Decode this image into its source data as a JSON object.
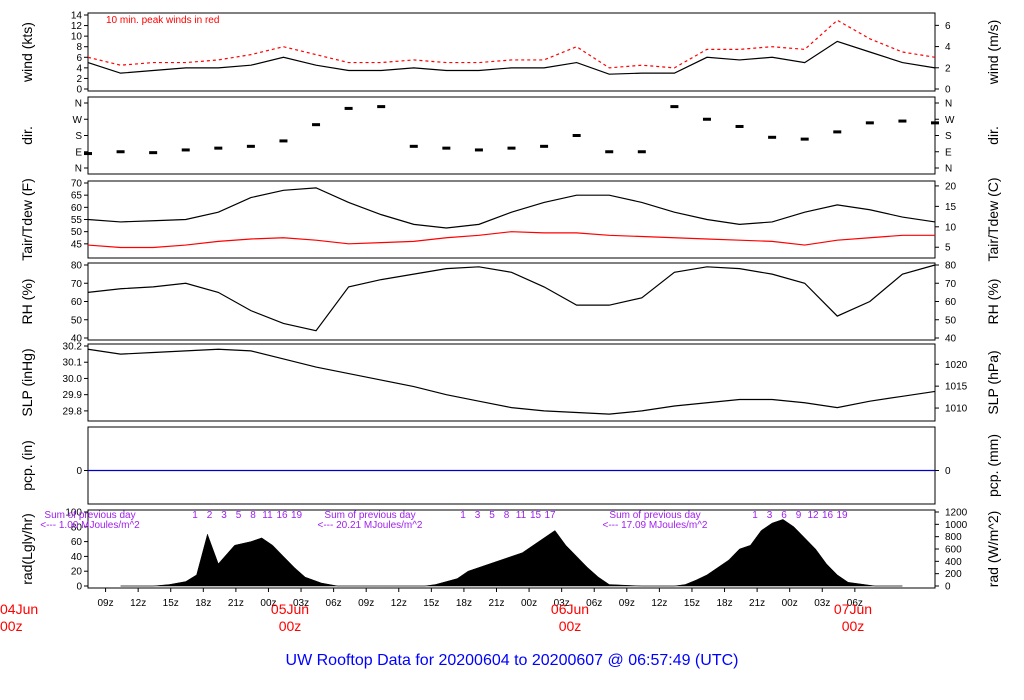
{
  "title": "UW Rooftop Data for 20200604  to  20200607 @ 06:57:49  (UTC)",
  "colors": {
    "trace": "#000000",
    "peak": "#ff0000",
    "dew": "#ff0000",
    "pcp": "#0000cd",
    "solar_note": "#a020f0",
    "date": "#ff0000",
    "title": "#0000ff"
  },
  "x_axis": {
    "hour_ticks": [
      "09z",
      "12z",
      "15z",
      "18z",
      "21z",
      "00z",
      "03z",
      "06z",
      "09z",
      "12z",
      "15z",
      "18z",
      "21z",
      "00z",
      "03z",
      "06z",
      "09z",
      "12z",
      "15z",
      "18z",
      "21z",
      "00z",
      "03z",
      "06z"
    ],
    "date_labels": [
      {
        "day": "04Jun",
        "hour": "00z"
      },
      {
        "day": "05Jun",
        "hour": "00z"
      },
      {
        "day": "06Jun",
        "hour": "00z"
      },
      {
        "day": "07Jun",
        "hour": "00z"
      }
    ]
  },
  "chart_data": [
    {
      "type": "line",
      "panel": "wind",
      "ylabel_left": "wind (kts)",
      "ylabel_right": "wind (m/s)",
      "ylim": [
        0,
        14
      ],
      "left_ticks": [
        "0",
        "2",
        "4",
        "6",
        "8",
        "10",
        "12",
        "14"
      ],
      "right_ticks": [
        "0",
        "2",
        "4",
        "6"
      ],
      "annotation": "10 min. peak winds in red",
      "series": [
        {
          "x_hours": [
            0,
            3,
            6,
            9,
            12,
            15,
            18,
            21,
            24,
            27,
            30,
            33,
            36,
            39,
            42,
            45,
            48,
            51,
            54,
            57,
            60,
            63,
            66,
            69,
            72,
            75,
            78
          ],
          "values": [
            5,
            3,
            3.5,
            4,
            4,
            4.5,
            6,
            4.5,
            3.5,
            3.5,
            4,
            3.5,
            3.5,
            4,
            4,
            5,
            2.8,
            3,
            3,
            6,
            5.5,
            6,
            5,
            9,
            7,
            5,
            4
          ]
        },
        {
          "x_hours": [
            0,
            3,
            6,
            9,
            12,
            15,
            18,
            21,
            24,
            27,
            30,
            33,
            36,
            39,
            42,
            45,
            48,
            51,
            54,
            57,
            60,
            63,
            66,
            69,
            72,
            75,
            78
          ],
          "values": [
            6,
            4.5,
            5,
            5,
            5.5,
            6.5,
            8,
            6.5,
            5,
            5,
            5.5,
            5,
            5,
            5.5,
            5.5,
            8,
            4,
            4.5,
            4,
            7.5,
            7.5,
            8,
            7.5,
            13,
            9.5,
            7,
            6
          ]
        }
      ]
    },
    {
      "type": "scatter",
      "panel": "dir",
      "ylabel_left": "dir.",
      "ylabel_right": "dir.",
      "left_ticks": [
        "N",
        "E",
        "S",
        "W",
        "N"
      ],
      "right_ticks": [
        "N",
        "E",
        "S",
        "W",
        "N"
      ],
      "x_hours": [
        0,
        3,
        6,
        9,
        12,
        15,
        18,
        21,
        24,
        27,
        30,
        33,
        36,
        39,
        42,
        45,
        48,
        51,
        54,
        57,
        60,
        63,
        66,
        69,
        72,
        75,
        78
      ],
      "values": [
        80,
        90,
        85,
        100,
        110,
        120,
        150,
        240,
        330,
        340,
        120,
        110,
        100,
        110,
        120,
        180,
        90,
        90,
        340,
        270,
        230,
        170,
        160,
        200,
        250,
        260,
        250
      ]
    },
    {
      "type": "line",
      "panel": "temp",
      "ylabel_left": "Tair/Tdew (F)",
      "ylabel_right": "Tair/Tdew (C)",
      "ylim": [
        40,
        70
      ],
      "left_ticks": [
        "45",
        "50",
        "55",
        "60",
        "65",
        "70"
      ],
      "right_ticks": [
        "5",
        "10",
        "15",
        "20"
      ],
      "series": [
        {
          "x_hours": [
            0,
            3,
            6,
            9,
            12,
            15,
            18,
            21,
            24,
            27,
            30,
            33,
            36,
            39,
            42,
            45,
            48,
            51,
            54,
            57,
            60,
            63,
            66,
            69,
            72,
            75,
            78
          ],
          "values": [
            55,
            54,
            54.5,
            55,
            58,
            64,
            67,
            68,
            62,
            57,
            53,
            51.5,
            53,
            58,
            62,
            65,
            65,
            62,
            58,
            55,
            53,
            54,
            58,
            61,
            59,
            56,
            54
          ]
        },
        {
          "x_hours": [
            0,
            3,
            6,
            9,
            12,
            15,
            18,
            21,
            24,
            27,
            30,
            33,
            36,
            39,
            42,
            45,
            48,
            51,
            54,
            57,
            60,
            63,
            66,
            69,
            72,
            75,
            78
          ],
          "values": [
            44.5,
            43.5,
            43.5,
            44.5,
            46,
            47,
            47.5,
            46.5,
            45,
            45.5,
            46,
            47.5,
            48.5,
            50,
            49.5,
            49.5,
            48.5,
            48,
            47.5,
            47,
            46.5,
            46,
            44.5,
            46.5,
            47.5,
            48.5,
            48.5
          ]
        }
      ]
    },
    {
      "type": "line",
      "panel": "rh",
      "ylabel_left": "RH (%)",
      "ylabel_right": "RH (%)",
      "ylim": [
        40,
        80
      ],
      "left_ticks": [
        "40",
        "50",
        "60",
        "70",
        "80"
      ],
      "right_ticks": [
        "40",
        "50",
        "60",
        "70",
        "80"
      ],
      "x_hours": [
        0,
        3,
        6,
        9,
        12,
        15,
        18,
        21,
        24,
        27,
        30,
        33,
        36,
        39,
        42,
        45,
        48,
        51,
        54,
        57,
        60,
        63,
        66,
        69,
        72,
        75,
        78
      ],
      "values": [
        65,
        67,
        68,
        70,
        65,
        55,
        48,
        44,
        68,
        72,
        75,
        78,
        79,
        76,
        68,
        58,
        58,
        62,
        76,
        79,
        78,
        75,
        70,
        52,
        60,
        75,
        80
      ]
    },
    {
      "type": "line",
      "panel": "slp",
      "ylabel_left": "SLP (inHg)",
      "ylabel_right": "SLP (hPa)",
      "ylim": [
        29.75,
        30.2
      ],
      "left_ticks": [
        "29.8",
        "29.9",
        "30.0",
        "30.1",
        "30.2"
      ],
      "right_ticks": [
        "1010",
        "1015",
        "1020"
      ],
      "x_hours": [
        0,
        3,
        6,
        9,
        12,
        15,
        18,
        21,
        24,
        27,
        30,
        33,
        36,
        39,
        42,
        45,
        48,
        51,
        54,
        57,
        60,
        63,
        66,
        69,
        72,
        75,
        78
      ],
      "values": [
        30.18,
        30.15,
        30.16,
        30.17,
        30.18,
        30.17,
        30.12,
        30.07,
        30.03,
        29.99,
        29.95,
        29.9,
        29.86,
        29.82,
        29.8,
        29.79,
        29.78,
        29.8,
        29.83,
        29.85,
        29.87,
        29.87,
        29.85,
        29.82,
        29.86,
        29.89,
        29.92
      ]
    },
    {
      "type": "line",
      "panel": "pcp",
      "ylabel_left": "pcp. (in)",
      "ylabel_right": "pcp. (mm)",
      "left_ticks": [
        "0"
      ],
      "right_ticks": [
        "0"
      ],
      "x_hours": [
        0,
        78
      ],
      "values": [
        0,
        0
      ]
    },
    {
      "type": "area",
      "panel": "rad",
      "ylabel_left": "rad(Lgly/hr)",
      "ylabel_right": "rad (W/m^2)",
      "ylim": [
        0,
        100
      ],
      "left_ticks": [
        "0",
        "20",
        "40",
        "60",
        "80",
        "100"
      ],
      "right_ticks": [
        "0",
        "200",
        "400",
        "600",
        "800",
        "1000",
        "1200"
      ],
      "notes": [
        {
          "text": "Sum of previous day",
          "sub": "<--- 1.00 MJoules/m^2"
        },
        {
          "text": "Sum of previous day",
          "sub": "<--- 20.21 MJoules/m^2"
        },
        {
          "text": "Sum of previous day",
          "sub": "<--- 17.09 MJoules/m^2"
        }
      ],
      "marker_labels": [
        [
          "1",
          "2",
          "3",
          "5",
          "8",
          "11",
          "16",
          "19"
        ],
        [
          "1",
          "3",
          "5",
          "8",
          "11",
          "15",
          "17"
        ],
        [
          "1",
          "3",
          "6",
          "9",
          "12",
          "16",
          "19"
        ]
      ],
      "x_hours": [
        3,
        6,
        7.5,
        9,
        10,
        11,
        12,
        13.5,
        15,
        16,
        17,
        18,
        19,
        20,
        21.5,
        23,
        24,
        27,
        31,
        32,
        34,
        35,
        36,
        37,
        38,
        39,
        40,
        41,
        42,
        43,
        44,
        45,
        46,
        47,
        48,
        51,
        54,
        55,
        56,
        57,
        58,
        59,
        60,
        61,
        62,
        63,
        64,
        65,
        66,
        67,
        68,
        69,
        70,
        72.5,
        75
      ],
      "values": [
        0,
        0,
        2,
        6,
        15,
        70,
        30,
        55,
        60,
        65,
        55,
        40,
        25,
        12,
        4,
        0,
        0,
        0,
        0,
        2,
        10,
        20,
        25,
        30,
        35,
        40,
        45,
        55,
        65,
        75,
        55,
        40,
        25,
        12,
        2,
        0,
        0,
        2,
        8,
        15,
        25,
        35,
        50,
        55,
        75,
        85,
        90,
        80,
        65,
        50,
        30,
        15,
        5,
        0,
        0
      ]
    }
  ]
}
